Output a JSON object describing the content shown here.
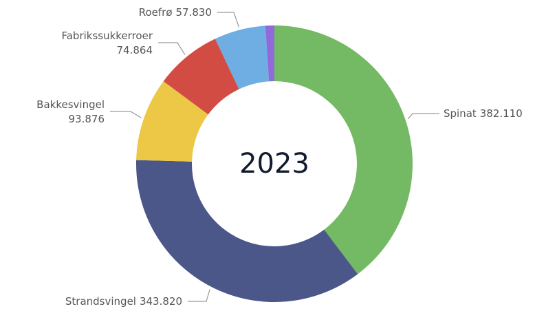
{
  "chart_data": {
    "type": "donut",
    "center_label": "2023",
    "categories": [
      "Spinat",
      "Strandsvingel",
      "Bakkesvingel",
      "Fabrikssukkerroer",
      "Roefrø",
      null
    ],
    "values": [
      382110,
      343820,
      93876,
      74864,
      57830,
      10000
    ],
    "value_labels": [
      "382.110",
      "343.820",
      "93.876",
      "74.864",
      "57.830",
      null
    ],
    "colors": [
      "#74b963",
      "#4b5689",
      "#ecc846",
      "#d34c44",
      "#6eaee3",
      "#8f6ad8"
    ]
  }
}
